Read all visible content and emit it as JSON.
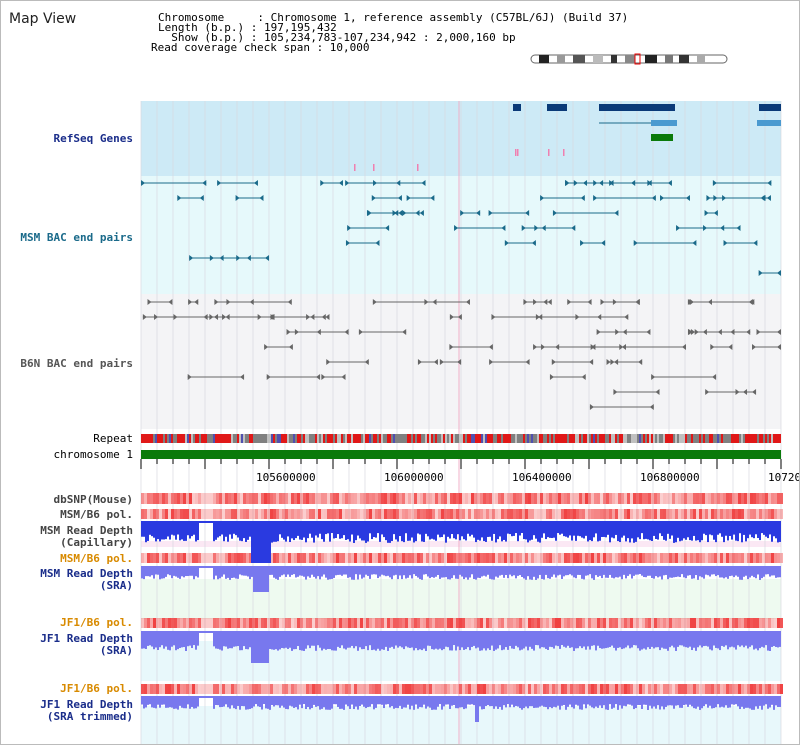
{
  "header": {
    "title": "Map View",
    "lines": [
      "Chromosome     : Chromosome 1, reference assembly (C57BL/6J) (Build 37)",
      "Length (b.p.) : 197,195,432",
      "  Show (b.p.) : 105,234,783-107,234,942 : 2,000,160 bp",
      "Read coverage check span : 10,000"
    ]
  },
  "tracks": {
    "refseq": "RefSeq Genes",
    "msm_bac": "MSM BAC end pairs",
    "b6n_bac": "B6N BAC end pairs",
    "repeat": "Repeat",
    "chromosome": "chromosome 1",
    "dbsnp": "dbSNP(Mouse)",
    "msm_b6_pol_1": "MSM/B6 pol.",
    "msm_depth_cap_1": "MSM Read Depth",
    "msm_depth_cap_2": "(Capillary)",
    "msm_b6_pol_2": "MSM/B6 pol.",
    "msm_depth_sra_1": "MSM Read Depth",
    "msm_depth_sra_2": "(SRA)",
    "jf1_b6_pol_1": "JF1/B6 pol.",
    "jf1_depth_sra_1": "JF1 Read Depth",
    "jf1_depth_sra_2": "(SRA)",
    "jf1_b6_pol_2": "JF1/B6 pol.",
    "jf1_depth_trim_1": "JF1 Read Depth",
    "jf1_depth_trim_2": "(SRA trimmed)"
  },
  "axis": {
    "ticks": [
      "105600000",
      "106000000",
      "106400000",
      "106800000",
      "10720"
    ]
  },
  "colors": {
    "refseq_bg": "#cdeaf6",
    "bac_bg": "#e6f9fb",
    "b6n_bg": "#f4f4f6",
    "chromosome": "#0a7a0a",
    "gene": "#0a3a78",
    "msm_pair": "#1a6a8a",
    "b6n_pair": "#666666",
    "depth_blue": "#2a3ae0",
    "depth_light": "#7878ee",
    "pol_red": "#f04040"
  }
}
